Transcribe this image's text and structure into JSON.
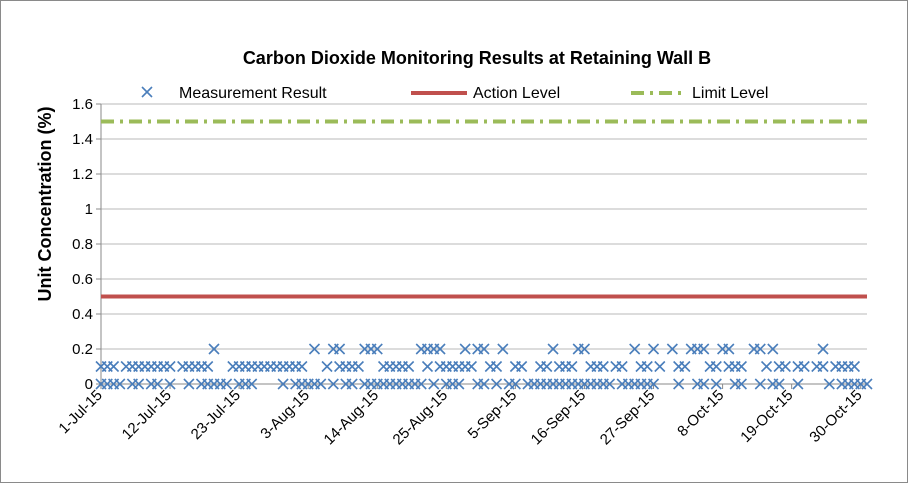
{
  "chart_data": {
    "type": "scatter",
    "title": "Carbon Dioxide Monitoring Results at Retaining Wall B",
    "ylabel": "Unit Concentration (%)",
    "xlabel": "",
    "ylim": [
      0,
      1.6
    ],
    "yticks": [
      "0",
      "0.2",
      "0.4",
      "0.6",
      "0.8",
      "1",
      "1.2",
      "1.4",
      "1.6"
    ],
    "x_start": "2015-07-01",
    "x_end": "2015-10-31",
    "xticks": [
      "1-Jul-15",
      "12-Jul-15",
      "23-Jul-15",
      "3-Aug-15",
      "14-Aug-15",
      "25-Aug-15",
      "5-Sep-15",
      "16-Sep-15",
      "27-Sep-15",
      "8-Oct-15",
      "19-Oct-15",
      "30-Oct-15"
    ],
    "grid": "horizontal",
    "legend_placement": "top",
    "legend": [
      "Measurement Result",
      "Action Level",
      "Limit Level"
    ],
    "series": [
      {
        "name": "Measurement Result",
        "kind": "scatter",
        "color": "#4a7ebb",
        "points": [
          [
            "2015-07-01",
            0
          ],
          [
            "2015-07-01",
            0.1
          ],
          [
            "2015-07-02",
            0
          ],
          [
            "2015-07-02",
            0.1
          ],
          [
            "2015-07-03",
            0
          ],
          [
            "2015-07-03",
            0.1
          ],
          [
            "2015-07-04",
            0
          ],
          [
            "2015-07-05",
            0.1
          ],
          [
            "2015-07-06",
            0
          ],
          [
            "2015-07-06",
            0.1
          ],
          [
            "2015-07-07",
            0
          ],
          [
            "2015-07-07",
            0.1
          ],
          [
            "2015-07-08",
            0.1
          ],
          [
            "2015-07-09",
            0
          ],
          [
            "2015-07-09",
            0.1
          ],
          [
            "2015-07-10",
            0
          ],
          [
            "2015-07-10",
            0.1
          ],
          [
            "2015-07-11",
            0.1
          ],
          [
            "2015-07-12",
            0
          ],
          [
            "2015-07-12",
            0.1
          ],
          [
            "2015-07-14",
            0.1
          ],
          [
            "2015-07-15",
            0
          ],
          [
            "2015-07-15",
            0.1
          ],
          [
            "2015-07-16",
            0.1
          ],
          [
            "2015-07-17",
            0
          ],
          [
            "2015-07-17",
            0.1
          ],
          [
            "2015-07-18",
            0
          ],
          [
            "2015-07-18",
            0.1
          ],
          [
            "2015-07-19",
            0
          ],
          [
            "2015-07-19",
            0.2
          ],
          [
            "2015-07-20",
            0
          ],
          [
            "2015-07-21",
            0
          ],
          [
            "2015-07-22",
            0.1
          ],
          [
            "2015-07-23",
            0
          ],
          [
            "2015-07-23",
            0.1
          ],
          [
            "2015-07-24",
            0
          ],
          [
            "2015-07-24",
            0.1
          ],
          [
            "2015-07-25",
            0
          ],
          [
            "2015-07-25",
            0.1
          ],
          [
            "2015-07-26",
            0.1
          ],
          [
            "2015-07-27",
            0.1
          ],
          [
            "2015-07-28",
            0.1
          ],
          [
            "2015-07-29",
            0.1
          ],
          [
            "2015-07-30",
            0
          ],
          [
            "2015-07-30",
            0.1
          ],
          [
            "2015-07-31",
            0.1
          ],
          [
            "2015-08-01",
            0
          ],
          [
            "2015-08-01",
            0.1
          ],
          [
            "2015-08-02",
            0
          ],
          [
            "2015-08-02",
            0.1
          ],
          [
            "2015-08-03",
            0
          ],
          [
            "2015-08-04",
            0
          ],
          [
            "2015-08-04",
            0.2
          ],
          [
            "2015-08-05",
            0
          ],
          [
            "2015-08-06",
            0.1
          ],
          [
            "2015-08-07",
            0
          ],
          [
            "2015-08-07",
            0.2
          ],
          [
            "2015-08-08",
            0.1
          ],
          [
            "2015-08-08",
            0.2
          ],
          [
            "2015-08-09",
            0
          ],
          [
            "2015-08-09",
            0.1
          ],
          [
            "2015-08-10",
            0
          ],
          [
            "2015-08-10",
            0.1
          ],
          [
            "2015-08-11",
            0.1
          ],
          [
            "2015-08-12",
            0
          ],
          [
            "2015-08-12",
            0.2
          ],
          [
            "2015-08-13",
            0
          ],
          [
            "2015-08-13",
            0.2
          ],
          [
            "2015-08-14",
            0
          ],
          [
            "2015-08-14",
            0.2
          ],
          [
            "2015-08-15",
            0
          ],
          [
            "2015-08-15",
            0.1
          ],
          [
            "2015-08-16",
            0
          ],
          [
            "2015-08-16",
            0.1
          ],
          [
            "2015-08-17",
            0
          ],
          [
            "2015-08-17",
            0.1
          ],
          [
            "2015-08-18",
            0
          ],
          [
            "2015-08-18",
            0.1
          ],
          [
            "2015-08-19",
            0
          ],
          [
            "2015-08-19",
            0.1
          ],
          [
            "2015-08-20",
            0
          ],
          [
            "2015-08-21",
            0
          ],
          [
            "2015-08-21",
            0.2
          ],
          [
            "2015-08-22",
            0.1
          ],
          [
            "2015-08-22",
            0.2
          ],
          [
            "2015-08-23",
            0
          ],
          [
            "2015-08-23",
            0.2
          ],
          [
            "2015-08-24",
            0.1
          ],
          [
            "2015-08-24",
            0.2
          ],
          [
            "2015-08-25",
            0
          ],
          [
            "2015-08-25",
            0.1
          ],
          [
            "2015-08-26",
            0
          ],
          [
            "2015-08-26",
            0.1
          ],
          [
            "2015-08-27",
            0
          ],
          [
            "2015-08-27",
            0.1
          ],
          [
            "2015-08-28",
            0.1
          ],
          [
            "2015-08-28",
            0.2
          ],
          [
            "2015-08-29",
            0.1
          ],
          [
            "2015-08-30",
            0
          ],
          [
            "2015-08-30",
            0.2
          ],
          [
            "2015-08-31",
            0
          ],
          [
            "2015-08-31",
            0.2
          ],
          [
            "2015-09-01",
            0.1
          ],
          [
            "2015-09-02",
            0
          ],
          [
            "2015-09-02",
            0.1
          ],
          [
            "2015-09-03",
            0.2
          ],
          [
            "2015-09-04",
            0
          ],
          [
            "2015-09-05",
            0
          ],
          [
            "2015-09-05",
            0.1
          ],
          [
            "2015-09-06",
            0.1
          ],
          [
            "2015-09-07",
            0
          ],
          [
            "2015-09-08",
            0
          ],
          [
            "2015-09-09",
            0
          ],
          [
            "2015-09-09",
            0.1
          ],
          [
            "2015-09-10",
            0
          ],
          [
            "2015-09-10",
            0.1
          ],
          [
            "2015-09-11",
            0
          ],
          [
            "2015-09-11",
            0.2
          ],
          [
            "2015-09-12",
            0
          ],
          [
            "2015-09-12",
            0.1
          ],
          [
            "2015-09-13",
            0
          ],
          [
            "2015-09-13",
            0.1
          ],
          [
            "2015-09-14",
            0
          ],
          [
            "2015-09-14",
            0.1
          ],
          [
            "2015-09-15",
            0
          ],
          [
            "2015-09-15",
            0.2
          ],
          [
            "2015-09-16",
            0
          ],
          [
            "2015-09-16",
            0.2
          ],
          [
            "2015-09-17",
            0
          ],
          [
            "2015-09-17",
            0.1
          ],
          [
            "2015-09-18",
            0
          ],
          [
            "2015-09-18",
            0.1
          ],
          [
            "2015-09-19",
            0
          ],
          [
            "2015-09-19",
            0.1
          ],
          [
            "2015-09-20",
            0
          ],
          [
            "2015-09-21",
            0.1
          ],
          [
            "2015-09-22",
            0
          ],
          [
            "2015-09-22",
            0.1
          ],
          [
            "2015-09-23",
            0
          ],
          [
            "2015-09-24",
            0
          ],
          [
            "2015-09-24",
            0.2
          ],
          [
            "2015-09-25",
            0
          ],
          [
            "2015-09-25",
            0.1
          ],
          [
            "2015-09-26",
            0
          ],
          [
            "2015-09-26",
            0.1
          ],
          [
            "2015-09-27",
            0
          ],
          [
            "2015-09-27",
            0.2
          ],
          [
            "2015-09-28",
            0.1
          ],
          [
            "2015-09-30",
            0.2
          ],
          [
            "2015-10-01",
            0
          ],
          [
            "2015-10-01",
            0.1
          ],
          [
            "2015-10-02",
            0.1
          ],
          [
            "2015-10-03",
            0.2
          ],
          [
            "2015-10-04",
            0
          ],
          [
            "2015-10-04",
            0.2
          ],
          [
            "2015-10-05",
            0
          ],
          [
            "2015-10-05",
            0.2
          ],
          [
            "2015-10-06",
            0.1
          ],
          [
            "2015-10-07",
            0
          ],
          [
            "2015-10-07",
            0.1
          ],
          [
            "2015-10-08",
            0.2
          ],
          [
            "2015-10-09",
            0.1
          ],
          [
            "2015-10-09",
            0.2
          ],
          [
            "2015-10-10",
            0
          ],
          [
            "2015-10-10",
            0.1
          ],
          [
            "2015-10-11",
            0
          ],
          [
            "2015-10-11",
            0.1
          ],
          [
            "2015-10-13",
            0.2
          ],
          [
            "2015-10-14",
            0
          ],
          [
            "2015-10-14",
            0.2
          ],
          [
            "2015-10-15",
            0.1
          ],
          [
            "2015-10-16",
            0
          ],
          [
            "2015-10-16",
            0.2
          ],
          [
            "2015-10-17",
            0
          ],
          [
            "2015-10-17",
            0.1
          ],
          [
            "2015-10-18",
            0.1
          ],
          [
            "2015-10-20",
            0
          ],
          [
            "2015-10-20",
            0.1
          ],
          [
            "2015-10-21",
            0.1
          ],
          [
            "2015-10-23",
            0.1
          ],
          [
            "2015-10-24",
            0.1
          ],
          [
            "2015-10-24",
            0.2
          ],
          [
            "2015-10-25",
            0
          ],
          [
            "2015-10-26",
            0.1
          ],
          [
            "2015-10-27",
            0
          ],
          [
            "2015-10-27",
            0.1
          ],
          [
            "2015-10-28",
            0
          ],
          [
            "2015-10-28",
            0.1
          ],
          [
            "2015-10-29",
            0
          ],
          [
            "2015-10-29",
            0.1
          ],
          [
            "2015-10-30",
            0
          ],
          [
            "2015-10-31",
            0
          ]
        ]
      },
      {
        "name": "Action Level",
        "kind": "line",
        "color": "#c0504d",
        "style": "solid",
        "value": 0.5
      },
      {
        "name": "Limit Level",
        "kind": "line",
        "color": "#9bbb59",
        "style": "dash-dot",
        "value": 1.5
      }
    ]
  }
}
